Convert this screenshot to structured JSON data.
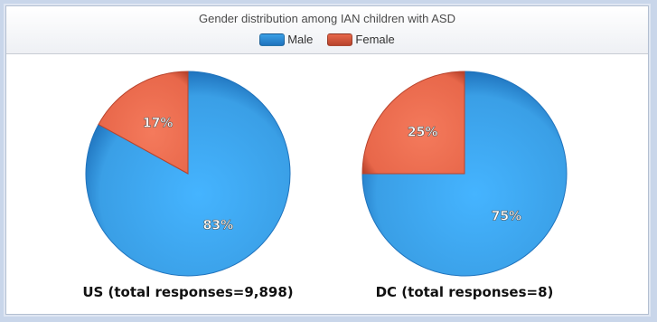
{
  "chart_data": {
    "type": "pie",
    "title": "Gender distribution among IAN children with ASD",
    "legend": {
      "placement": "top",
      "entries": [
        {
          "name": "Male",
          "color": "#3a9fe6"
        },
        {
          "name": "Female",
          "color": "#e8674a"
        }
      ]
    },
    "pies": [
      {
        "label": "US (total responses=9,898)",
        "slices": [
          {
            "name": "Male",
            "value": 83,
            "label": "83%"
          },
          {
            "name": "Female",
            "value": 17,
            "label": "17%"
          }
        ]
      },
      {
        "label": "DC  (total responses=8)",
        "slices": [
          {
            "name": "Male",
            "value": 75,
            "label": "75%"
          },
          {
            "name": "Female",
            "value": 25,
            "label": "25%"
          }
        ]
      }
    ]
  },
  "colors": {
    "male": "#3a9fe6",
    "male_dark": "#1f73bd",
    "female": "#e8674a",
    "female_dark": "#b8432c"
  }
}
